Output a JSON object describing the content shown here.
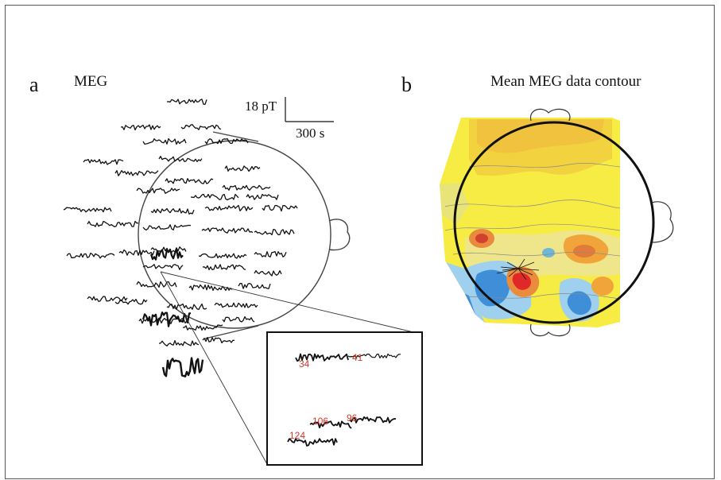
{
  "panels": [
    {
      "letter": "a",
      "title": "MEG"
    },
    {
      "letter": "b",
      "title": "Mean MEG data contour"
    }
  ],
  "scale_bar": {
    "amplitude": "18 pT",
    "time": "300 s"
  },
  "inset_channels": [
    "34",
    "41",
    "106",
    "96",
    "124"
  ],
  "colors": {
    "trace": "#111111",
    "channel_label": "#d23a2a",
    "contour_yellow": "#f6ec43",
    "contour_orange": "#f0b43a",
    "contour_red": "#e03030",
    "contour_blue": "#3f8fd8",
    "contour_lightblue": "#9fd0ee"
  }
}
